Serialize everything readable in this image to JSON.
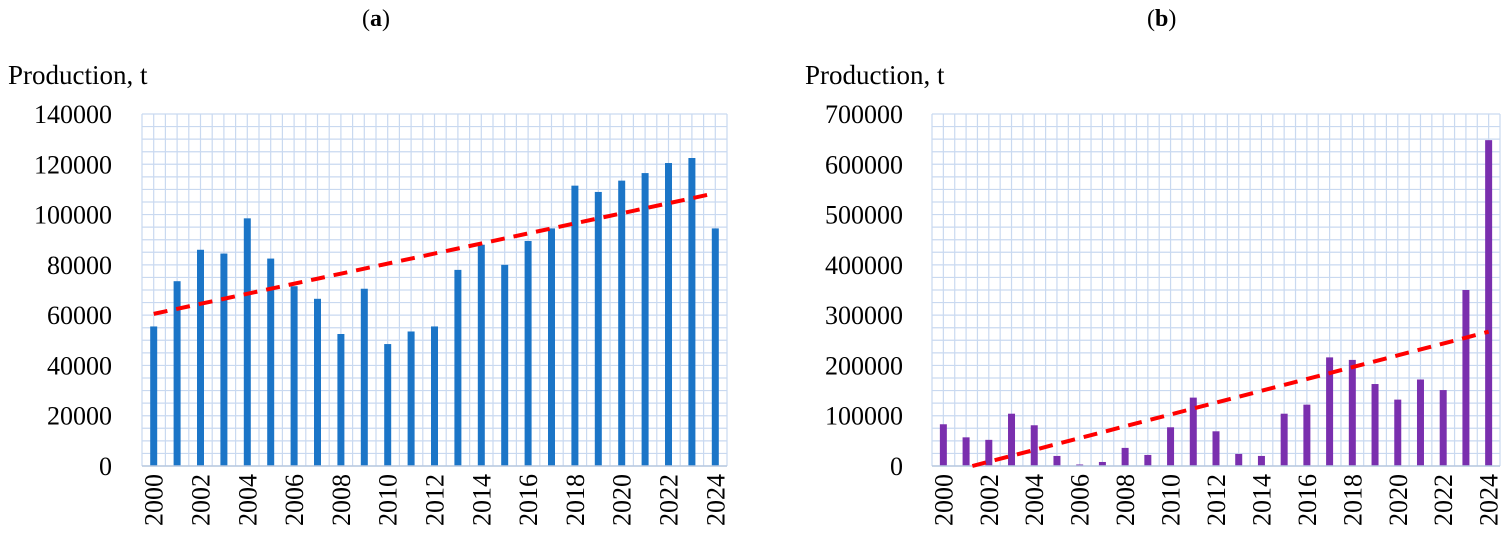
{
  "panels": [
    {
      "label_open": "(",
      "label_letter": "a",
      "label_close": ")"
    },
    {
      "label_open": "(",
      "label_letter": "b",
      "label_close": ")"
    }
  ],
  "chart_data": [
    {
      "type": "bar",
      "ylabel": "Production, t",
      "xlabel": "",
      "ylim": [
        0,
        140000
      ],
      "yticks": [
        0,
        20000,
        40000,
        60000,
        80000,
        100000,
        120000,
        140000
      ],
      "categories": [
        "2000",
        "2001",
        "2002",
        "2003",
        "2004",
        "2005",
        "2006",
        "2007",
        "2008",
        "2009",
        "2010",
        "2011",
        "2012",
        "2013",
        "2014",
        "2015",
        "2016",
        "2017",
        "2018",
        "2019",
        "2020",
        "2021",
        "2022",
        "2023",
        "2024"
      ],
      "xticks_shown": [
        "2000",
        "2002",
        "2004",
        "2006",
        "2008",
        "2010",
        "2012",
        "2014",
        "2016",
        "2018",
        "2020",
        "2022",
        "2024"
      ],
      "values": [
        55500,
        73500,
        86000,
        84500,
        98500,
        82500,
        71500,
        66500,
        52500,
        70500,
        48500,
        53500,
        55500,
        78000,
        88000,
        80000,
        89500,
        94500,
        111500,
        109000,
        113500,
        116500,
        120500,
        122500,
        94500
      ],
      "trendline": {
        "style": "dashed",
        "start": 60500,
        "end": 108500
      },
      "bar_color": "#1b75c7",
      "trend_color": "#ff0000",
      "grid": true,
      "grid_color": "#c9d9f0"
    },
    {
      "type": "bar",
      "ylabel": "Production, t",
      "xlabel": "",
      "ylim": [
        0,
        700000
      ],
      "yticks": [
        0,
        100000,
        200000,
        300000,
        400000,
        500000,
        600000,
        700000
      ],
      "categories": [
        "2000",
        "2001",
        "2002",
        "2003",
        "2004",
        "2005",
        "2006",
        "2007",
        "2008",
        "2009",
        "2010",
        "2011",
        "2012",
        "2013",
        "2014",
        "2015",
        "2016",
        "2017",
        "2018",
        "2019",
        "2020",
        "2021",
        "2022",
        "2023",
        "2024"
      ],
      "xticks_shown": [
        "2000",
        "2002",
        "2004",
        "2006",
        "2008",
        "2010",
        "2012",
        "2014",
        "2016",
        "2018",
        "2020",
        "2022",
        "2024"
      ],
      "values": [
        83000,
        57000,
        52000,
        104000,
        81000,
        20000,
        3000,
        8000,
        36000,
        22000,
        77000,
        136000,
        69000,
        24000,
        20000,
        104000,
        122000,
        216000,
        211000,
        163000,
        132000,
        172000,
        151000,
        350000,
        648000
      ],
      "trendline": {
        "style": "dashed",
        "start": -15000,
        "end": 267000,
        "clip_at_zero": true
      },
      "bar_color": "#7a2fae",
      "trend_color": "#ff0000",
      "grid": true,
      "grid_color": "#c9d9f0"
    }
  ]
}
